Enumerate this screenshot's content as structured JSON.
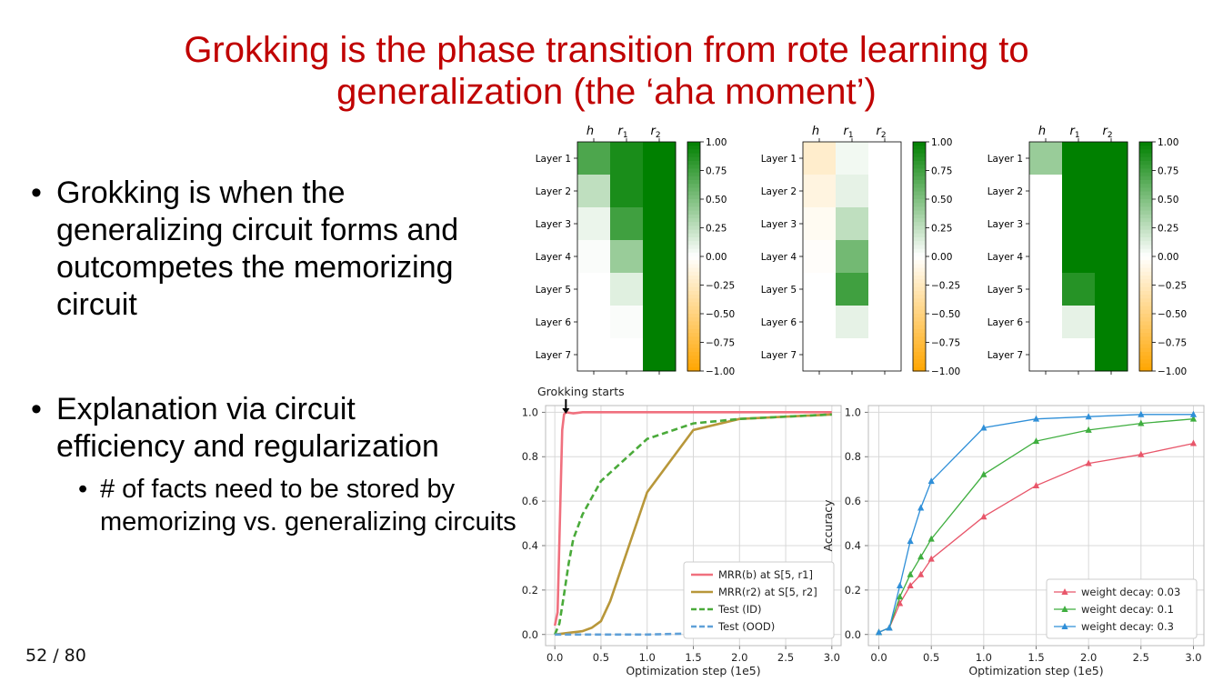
{
  "slide": {
    "title_line1": "Grokking is the phase transition from rote learning to",
    "title_line2": "generalization (the ‘aha moment’)",
    "bullet1": "Grokking is when the generalizing circuit forms and outcompetes the memorizing circuit",
    "bullet2": "Explanation via circuit efficiency and regularization",
    "subbullet1": "# of facts need to be stored by memorizing vs. generalizing circuits",
    "page": "52 / 80",
    "bullet_glyph": "•"
  },
  "colors": {
    "title": "#c00000",
    "green": "#008000",
    "orange": "#ffa500"
  },
  "chart_data": [
    {
      "type": "heatmap",
      "columns": [
        "h",
        "r1",
        "r2"
      ],
      "rows": [
        "Layer 1",
        "Layer 2",
        "Layer 3",
        "Layer 4",
        "Layer 5",
        "Layer 6",
        "Layer 7"
      ],
      "values": [
        [
          0.7,
          0.9,
          1.0
        ],
        [
          0.25,
          0.9,
          1.0
        ],
        [
          0.08,
          0.75,
          1.0
        ],
        [
          0.02,
          0.4,
          1.0
        ],
        [
          0.0,
          0.12,
          1.0
        ],
        [
          0.0,
          0.02,
          1.0
        ],
        [
          0.0,
          0.0,
          1.0
        ]
      ],
      "colorbar_ticks": [
        "1.00",
        "0.75",
        "0.50",
        "0.25",
        "0.00",
        "−0.25",
        "−0.50",
        "−0.75",
        "−1.00"
      ],
      "vmin": -1,
      "vmax": 1
    },
    {
      "type": "heatmap",
      "columns": [
        "h",
        "r1",
        "r2"
      ],
      "rows": [
        "Layer 1",
        "Layer 2",
        "Layer 3",
        "Layer 4",
        "Layer 5",
        "Layer 6",
        "Layer 7"
      ],
      "values": [
        [
          -0.2,
          0.05,
          0.0
        ],
        [
          -0.12,
          0.1,
          0.0
        ],
        [
          -0.05,
          0.25,
          0.0
        ],
        [
          -0.02,
          0.55,
          0.0
        ],
        [
          0.0,
          0.75,
          0.0
        ],
        [
          0.0,
          0.1,
          0.0
        ],
        [
          0.0,
          0.0,
          0.0
        ]
      ],
      "colorbar_ticks": [
        "1.00",
        "0.75",
        "0.50",
        "0.25",
        "0.00",
        "−0.25",
        "−0.50",
        "−0.75",
        "−1.00"
      ],
      "vmin": -1,
      "vmax": 1
    },
    {
      "type": "heatmap",
      "columns": [
        "h",
        "r1",
        "r2"
      ],
      "rows": [
        "Layer 1",
        "Layer 2",
        "Layer 3",
        "Layer 4",
        "Layer 5",
        "Layer 6",
        "Layer 7"
      ],
      "values": [
        [
          0.4,
          1.0,
          1.0
        ],
        [
          0.0,
          1.0,
          1.0
        ],
        [
          0.0,
          1.0,
          1.0
        ],
        [
          0.0,
          1.0,
          1.0
        ],
        [
          0.0,
          0.85,
          1.0
        ],
        [
          0.0,
          0.1,
          1.0
        ],
        [
          0.0,
          0.0,
          1.0
        ]
      ],
      "colorbar_ticks": [
        "1.00",
        "0.75",
        "0.50",
        "0.25",
        "0.00",
        "−0.25",
        "−0.50",
        "−0.75",
        "−1.00"
      ],
      "vmin": -1,
      "vmax": 1
    },
    {
      "type": "line",
      "annotation": "Grokking starts",
      "xlabel": "Optimization step (1e5)",
      "ylabel": "",
      "xlim": [
        -0.1,
        3.1
      ],
      "ylim": [
        -0.05,
        1.03
      ],
      "xticks": [
        "0.0",
        "0.5",
        "1.0",
        "1.5",
        "2.0",
        "2.5",
        "3.0"
      ],
      "yticks": [
        "0.0",
        "0.2",
        "0.4",
        "0.6",
        "0.8",
        "1.0"
      ],
      "legend_position": "lower right",
      "series": [
        {
          "name": "MRR(b) at S[5, r1]",
          "color": "#f0707e",
          "dash": "solid",
          "x": [
            0.0,
            0.03,
            0.06,
            0.08,
            0.1,
            0.12,
            0.2,
            0.3,
            0.5,
            1.0,
            1.5,
            2.0,
            2.5,
            3.0
          ],
          "y": [
            0.04,
            0.1,
            0.6,
            0.92,
            0.99,
            1.0,
            0.995,
            1.0,
            1.0,
            1.0,
            1.0,
            1.0,
            1.0,
            1.0
          ]
        },
        {
          "name": "MRR(r2) at S[5, r2]",
          "color": "#b8973a",
          "dash": "solid",
          "x": [
            0.0,
            0.2,
            0.3,
            0.4,
            0.5,
            0.6,
            1.0,
            1.5,
            2.0,
            2.5,
            3.0
          ],
          "y": [
            0.0,
            0.01,
            0.015,
            0.03,
            0.06,
            0.15,
            0.64,
            0.92,
            0.97,
            0.98,
            0.99
          ]
        },
        {
          "name": "Test (ID)",
          "color": "#4aaa3a",
          "dash": "dashed",
          "x": [
            0.0,
            0.05,
            0.1,
            0.15,
            0.2,
            0.3,
            0.5,
            1.0,
            1.5,
            2.0,
            2.5,
            3.0
          ],
          "y": [
            0.0,
            0.05,
            0.18,
            0.32,
            0.43,
            0.54,
            0.69,
            0.88,
            0.95,
            0.97,
            0.98,
            0.99
          ]
        },
        {
          "name": "Test (OOD)",
          "color": "#5fa0d8",
          "dash": "dashed",
          "x": [
            0.0,
            0.5,
            1.0,
            1.5,
            2.0,
            2.5,
            3.0
          ],
          "y": [
            0.0,
            0.0,
            0.0,
            0.005,
            0.005,
            0.005,
            0.005
          ]
        }
      ]
    },
    {
      "type": "line",
      "xlabel": "Optimization step (1e5)",
      "ylabel": "Accuracy",
      "xlim": [
        -0.1,
        3.1
      ],
      "ylim": [
        -0.05,
        1.03
      ],
      "xticks": [
        "0.0",
        "0.5",
        "1.0",
        "1.5",
        "2.0",
        "2.5",
        "3.0"
      ],
      "yticks": [
        "0.0",
        "0.2",
        "0.4",
        "0.6",
        "0.8",
        "1.0"
      ],
      "legend_position": "lower right",
      "series": [
        {
          "name": "weight decay: 0.03",
          "color": "#e8566a",
          "x": [
            0.0,
            0.1,
            0.2,
            0.3,
            0.4,
            0.5,
            1.0,
            1.5,
            2.0,
            2.5,
            3.0
          ],
          "y": [
            0.01,
            0.03,
            0.14,
            0.22,
            0.27,
            0.34,
            0.53,
            0.67,
            0.77,
            0.81,
            0.86
          ]
        },
        {
          "name": "weight decay: 0.1",
          "color": "#3fae3f",
          "x": [
            0.0,
            0.1,
            0.2,
            0.3,
            0.4,
            0.5,
            1.0,
            1.5,
            2.0,
            2.5,
            3.0
          ],
          "y": [
            0.01,
            0.03,
            0.17,
            0.27,
            0.35,
            0.43,
            0.72,
            0.87,
            0.92,
            0.95,
            0.97
          ]
        },
        {
          "name": "weight decay: 0.3",
          "color": "#2f8fd8",
          "x": [
            0.0,
            0.1,
            0.2,
            0.3,
            0.4,
            0.5,
            1.0,
            1.5,
            2.0,
            2.5,
            3.0
          ],
          "y": [
            0.01,
            0.03,
            0.22,
            0.42,
            0.57,
            0.69,
            0.93,
            0.97,
            0.98,
            0.99,
            0.99
          ]
        }
      ]
    }
  ]
}
